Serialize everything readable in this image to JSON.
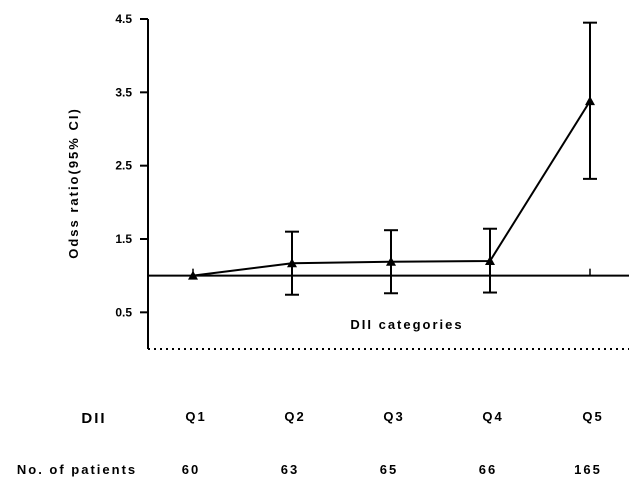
{
  "chart_data": {
    "type": "line",
    "categories": [
      "Q1",
      "Q2",
      "Q3",
      "Q4",
      "Q5"
    ],
    "values": [
      1.0,
      1.17,
      1.19,
      1.2,
      3.38
    ],
    "ci_lower": [
      1.0,
      0.74,
      0.76,
      0.77,
      2.32
    ],
    "ci_upper": [
      1.0,
      1.6,
      1.62,
      1.64,
      4.45
    ],
    "title": "",
    "xlabel": "DII categories",
    "ylabel": "Odss ratio(95% CI)",
    "ylim": [
      0,
      4.5
    ],
    "yticks": [
      0.5,
      1.5,
      2.5,
      3.5,
      4.5
    ],
    "reference_line": 1.0,
    "zero_line_style": "dotted",
    "grid": false,
    "marker": "triangle",
    "color": "#000000"
  },
  "table": {
    "dii_header": "DII",
    "patients_header": "No. of patients",
    "patients": [
      "60",
      "63",
      "65",
      "66",
      "165"
    ]
  }
}
